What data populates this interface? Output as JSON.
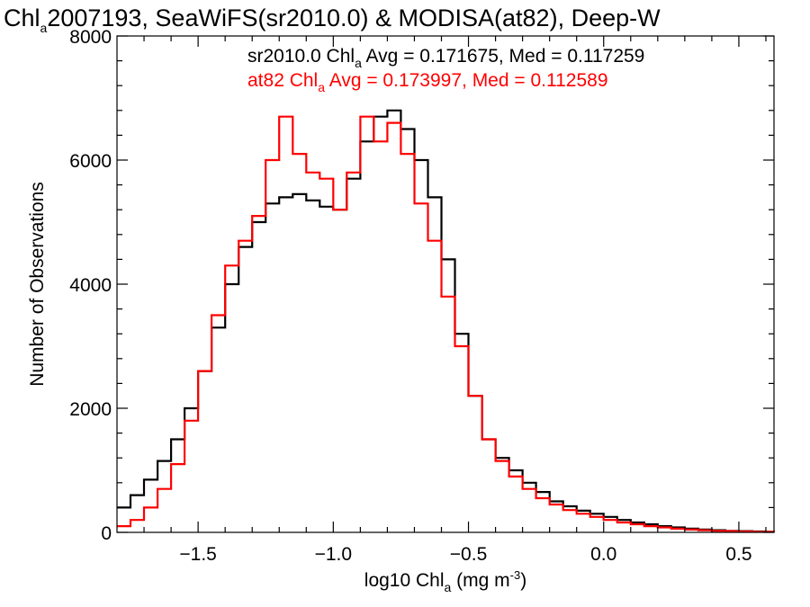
{
  "chart_data": {
    "type": "line",
    "step": true,
    "title": "2007193, SeaWiFS(sr2010.0) & MODISA(at82), Deep-W",
    "title_prefix": "Chl",
    "title_subscript": "a",
    "xlabel_prefix": "log10 Chl",
    "xlabel_subscript": "a",
    "xlabel_units_prefix": " (mg m",
    "xlabel_units_superscript": "-3",
    "xlabel_units_suffix": ")",
    "ylabel": "Number of Observations",
    "xlim": [
      -1.8,
      0.63
    ],
    "ylim": [
      0,
      8000
    ],
    "x_ticks": [
      -1.5,
      -1.0,
      -0.5,
      0.0,
      0.5
    ],
    "x_tick_labels": [
      "−1.5",
      "−1.0",
      "−0.5",
      "0.0",
      "0.5"
    ],
    "y_ticks": [
      0,
      2000,
      4000,
      6000,
      8000
    ],
    "y_tick_labels": [
      "0",
      "2000",
      "4000",
      "6000",
      "8000"
    ],
    "grid": false,
    "series": [
      {
        "key": "sr2010",
        "color": "#000000",
        "stat_prefix": "sr2010.0 Chl",
        "stat_subscript": "a",
        "stat_suffix": " Avg = 0.171675, Med = 0.117259",
        "x": [
          -1.8,
          -1.75,
          -1.7,
          -1.65,
          -1.6,
          -1.55,
          -1.5,
          -1.45,
          -1.4,
          -1.35,
          -1.3,
          -1.25,
          -1.2,
          -1.15,
          -1.1,
          -1.05,
          -1.0,
          -0.95,
          -0.9,
          -0.85,
          -0.8,
          -0.75,
          -0.7,
          -0.65,
          -0.6,
          -0.55,
          -0.5,
          -0.45,
          -0.4,
          -0.35,
          -0.3,
          -0.25,
          -0.2,
          -0.15,
          -0.1,
          -0.05,
          0.0,
          0.05,
          0.1,
          0.15,
          0.2,
          0.25,
          0.3,
          0.35,
          0.4,
          0.45,
          0.5,
          0.55,
          0.6,
          0.63
        ],
        "values": [
          400,
          600,
          850,
          1150,
          1500,
          2000,
          2600,
          3300,
          4000,
          4600,
          5000,
          5300,
          5400,
          5450,
          5350,
          5250,
          5200,
          5700,
          6300,
          6700,
          6800,
          6500,
          6000,
          5400,
          4400,
          3200,
          2200,
          1500,
          1200,
          1000,
          800,
          650,
          500,
          420,
          350,
          300,
          250,
          200,
          160,
          130,
          100,
          80,
          60,
          45,
          35,
          25,
          20,
          15,
          10,
          10
        ]
      },
      {
        "key": "at82",
        "color": "#ff0000",
        "stat_prefix": "at82 Chl",
        "stat_subscript": "a",
        "stat_suffix": " Avg = 0.173997, Med = 0.112589",
        "x": [
          -1.8,
          -1.75,
          -1.7,
          -1.65,
          -1.6,
          -1.55,
          -1.5,
          -1.45,
          -1.4,
          -1.35,
          -1.3,
          -1.25,
          -1.2,
          -1.15,
          -1.1,
          -1.05,
          -1.0,
          -0.95,
          -0.9,
          -0.85,
          -0.8,
          -0.75,
          -0.7,
          -0.65,
          -0.6,
          -0.55,
          -0.5,
          -0.45,
          -0.4,
          -0.35,
          -0.3,
          -0.25,
          -0.2,
          -0.15,
          -0.1,
          -0.05,
          0.0,
          0.05,
          0.1,
          0.15,
          0.2,
          0.25,
          0.3,
          0.35,
          0.4,
          0.45,
          0.5,
          0.55,
          0.6,
          0.63
        ],
        "values": [
          100,
          200,
          400,
          700,
          1100,
          1800,
          2600,
          3500,
          4300,
          4700,
          5100,
          6000,
          6700,
          6100,
          5800,
          5700,
          5200,
          5800,
          6700,
          6300,
          6600,
          6100,
          5300,
          4700,
          3800,
          3000,
          2200,
          1500,
          1150,
          900,
          700,
          550,
          450,
          360,
          300,
          250,
          200,
          160,
          130,
          100,
          80,
          60,
          45,
          35,
          25,
          20,
          15,
          10,
          8,
          5
        ]
      }
    ]
  }
}
